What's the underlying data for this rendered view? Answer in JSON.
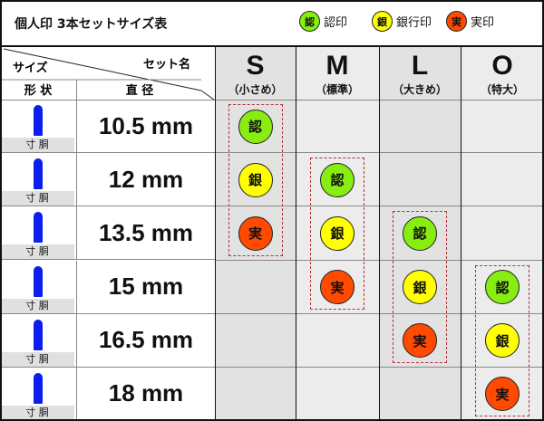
{
  "title": "個人印 3本セットサイズ表",
  "legend": [
    {
      "char": "認",
      "label": "認印",
      "color": "#88ee11"
    },
    {
      "char": "銀",
      "label": "銀行印",
      "color": "#ffff00"
    },
    {
      "char": "実",
      "label": "実印",
      "color": "#ff4a00"
    }
  ],
  "header": {
    "size": "サイズ",
    "set_name": "セット名",
    "shape": "形 状",
    "diameter": "直 径"
  },
  "sets": [
    {
      "letter": "S",
      "sub": "（小さめ）",
      "start_row": 0,
      "bg": "#e2e2e2"
    },
    {
      "letter": "M",
      "sub": "（標準）",
      "start_row": 1,
      "bg": "#ececec"
    },
    {
      "letter": "L",
      "sub": "（大きめ）",
      "start_row": 2,
      "bg": "#e2e2e2"
    },
    {
      "letter": "O",
      "sub": "（特大）",
      "start_row": 3,
      "bg": "#ececec"
    }
  ],
  "rows": [
    {
      "diameter": "10.5 mm",
      "shape_label": "寸 胴"
    },
    {
      "diameter": "12 mm",
      "shape_label": "寸 胴"
    },
    {
      "diameter": "13.5 mm",
      "shape_label": "寸 胴"
    },
    {
      "diameter": "15 mm",
      "shape_label": "寸 胴"
    },
    {
      "diameter": "16.5 mm",
      "shape_label": "寸 胴"
    },
    {
      "diameter": "18 mm",
      "shape_label": "寸 胴"
    }
  ]
}
